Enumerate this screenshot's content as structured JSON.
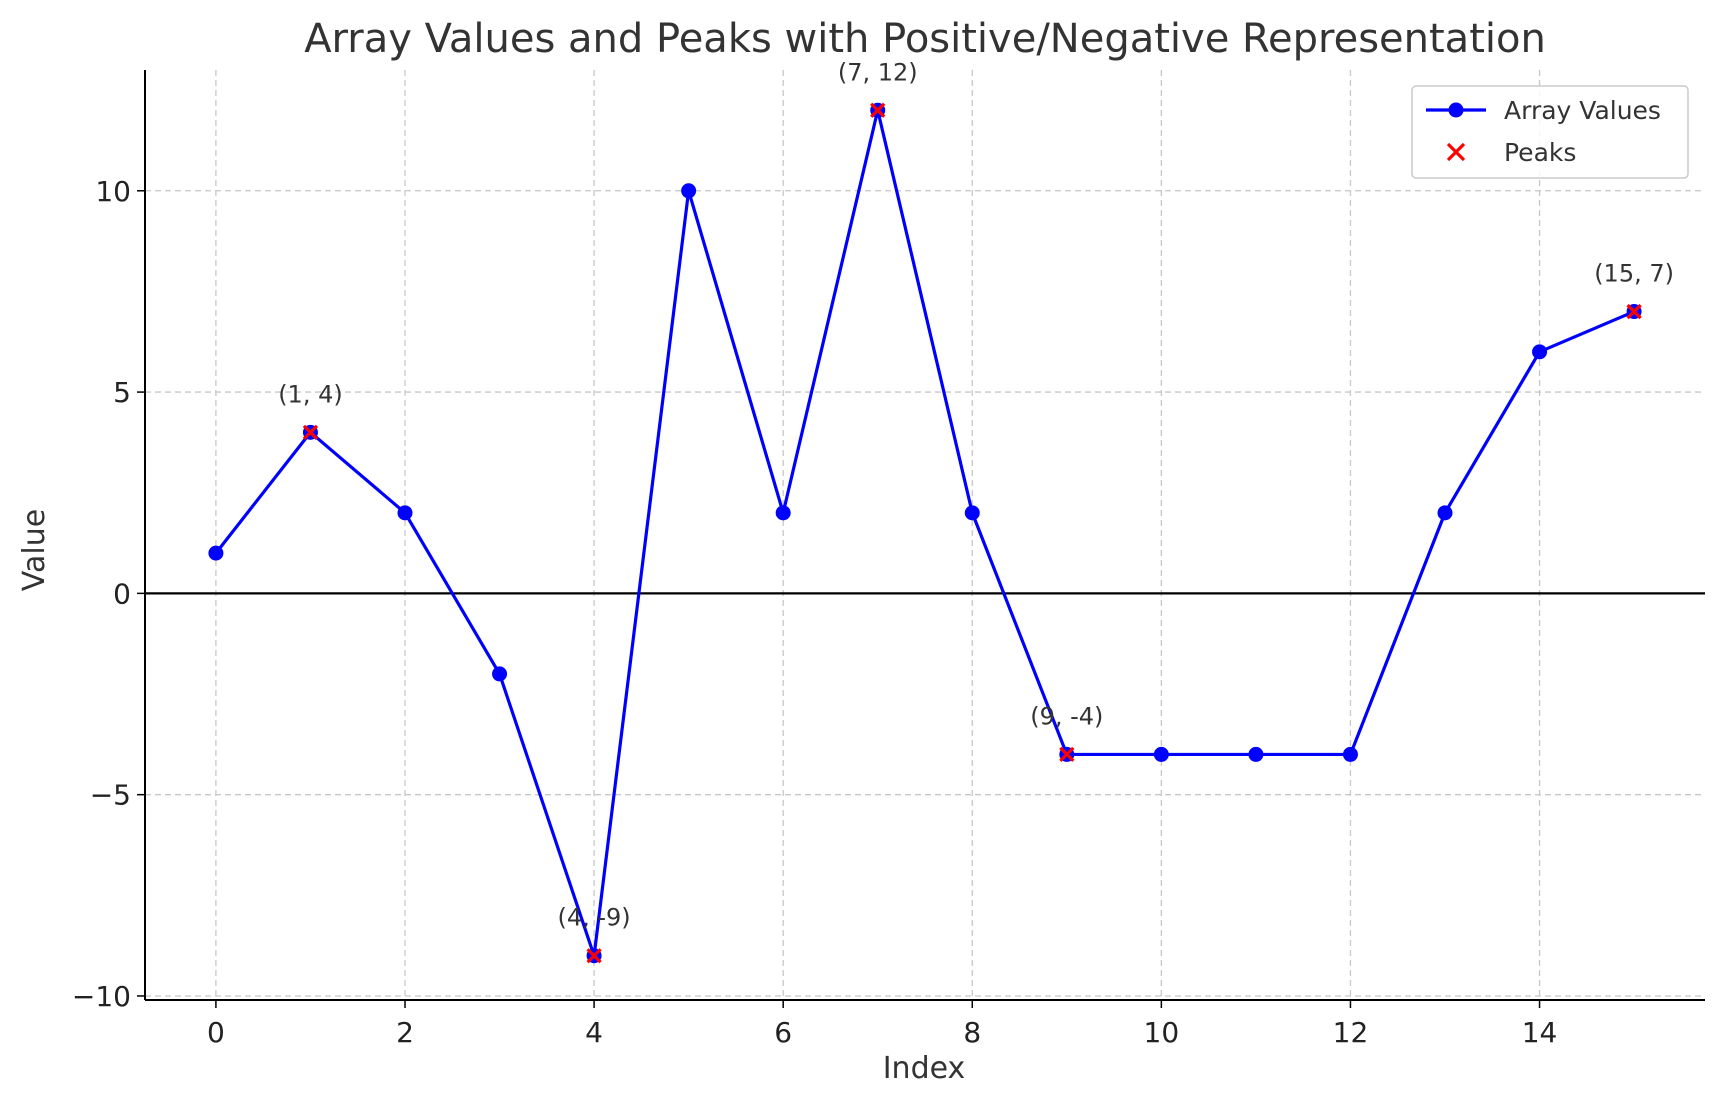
{
  "chart_data": {
    "type": "line",
    "title": "Array Values and Peaks with Positive/Negative Representation",
    "xlabel": "Index",
    "ylabel": "Value",
    "xlim": [
      -0.75,
      15.75
    ],
    "ylim": [
      -10.1,
      13
    ],
    "grid": true,
    "legend_position": "top-right",
    "x_ticks": [
      0,
      2,
      4,
      6,
      8,
      10,
      12,
      14
    ],
    "x_tick_labels": [
      "0",
      "2",
      "4",
      "6",
      "8",
      "10",
      "12",
      "14"
    ],
    "y_ticks": [
      -10,
      -5,
      0,
      5,
      10
    ],
    "y_tick_labels": [
      "−10",
      "−5",
      "0",
      "5",
      "10"
    ],
    "reference_line": {
      "y": 0,
      "color": "#000000"
    },
    "series": [
      {
        "name": "Array Values",
        "kind": "line-marker",
        "color": "#0000ff",
        "x": [
          0,
          1,
          2,
          3,
          4,
          5,
          6,
          7,
          8,
          9,
          10,
          11,
          12,
          13,
          14,
          15
        ],
        "values": [
          1,
          4,
          2,
          -2,
          -9,
          10,
          2,
          12,
          2,
          -4,
          -4,
          -4,
          -4,
          2,
          6,
          7
        ]
      },
      {
        "name": "Peaks",
        "kind": "scatter-x",
        "color": "#ff0000",
        "x": [
          1,
          4,
          7,
          9,
          15
        ],
        "values": [
          4,
          -9,
          12,
          -4,
          7
        ]
      }
    ],
    "annotations": [
      {
        "x": 1,
        "y": 4,
        "text": "(1, 4)"
      },
      {
        "x": 4,
        "y": -9,
        "text": "(4, -9)"
      },
      {
        "x": 7,
        "y": 12,
        "text": "(7, 12)"
      },
      {
        "x": 9,
        "y": -4,
        "text": "(9, -4)"
      },
      {
        "x": 15,
        "y": 7,
        "text": "(15, 7)"
      }
    ]
  }
}
